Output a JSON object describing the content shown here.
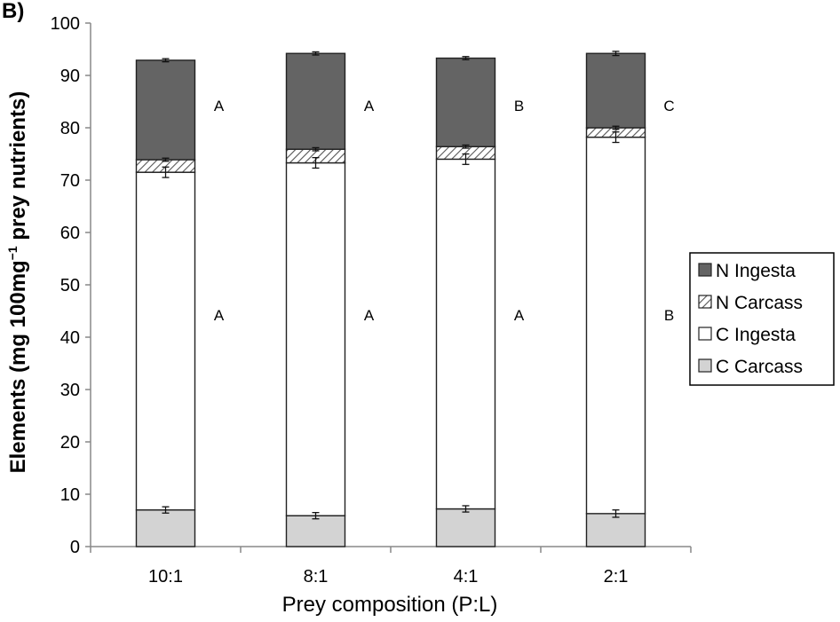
{
  "panel_label": "B)",
  "chart_data": {
    "type": "bar",
    "stacked": true,
    "xlabel": "Prey composition (P:L)",
    "ylabel_main": "Elements (mg 100mg",
    "ylabel_sup": "−1",
    "ylabel_tail": " prey nutrients)",
    "ylim": [
      0,
      100
    ],
    "yticks": [
      0,
      10,
      20,
      30,
      40,
      50,
      60,
      70,
      80,
      90,
      100
    ],
    "grid": false,
    "legend_position": "right",
    "categories": [
      "10:1",
      "8:1",
      "4:1",
      "2:1"
    ],
    "series": [
      {
        "name": "C Carcass",
        "color": "#d3d3d3",
        "hatch": false,
        "values": [
          7.0,
          5.9,
          7.2,
          6.3
        ],
        "errors": [
          0.6,
          0.6,
          0.6,
          0.7
        ]
      },
      {
        "name": "C Ingesta",
        "color": "#ffffff",
        "hatch": false,
        "values": [
          64.5,
          67.4,
          66.8,
          71.9
        ],
        "errors": [
          1.0,
          1.0,
          1.0,
          1.0
        ]
      },
      {
        "name": "N Carcass",
        "color": "#ffffff",
        "hatch": true,
        "values": [
          2.4,
          2.6,
          2.4,
          1.8
        ],
        "errors": [
          0.3,
          0.3,
          0.3,
          0.3
        ]
      },
      {
        "name": "N Ingesta",
        "color": "#646464",
        "hatch": false,
        "values": [
          19.0,
          18.3,
          16.9,
          14.2
        ],
        "errors": [
          0.3,
          0.3,
          0.3,
          0.4
        ]
      }
    ],
    "legend_order": [
      "N Ingesta",
      "N Carcass",
      "C Ingesta",
      "C Carcass"
    ],
    "letters_upper": [
      "A",
      "A",
      "B",
      "C"
    ],
    "letters_lower": [
      "A",
      "A",
      "A",
      "B"
    ]
  }
}
